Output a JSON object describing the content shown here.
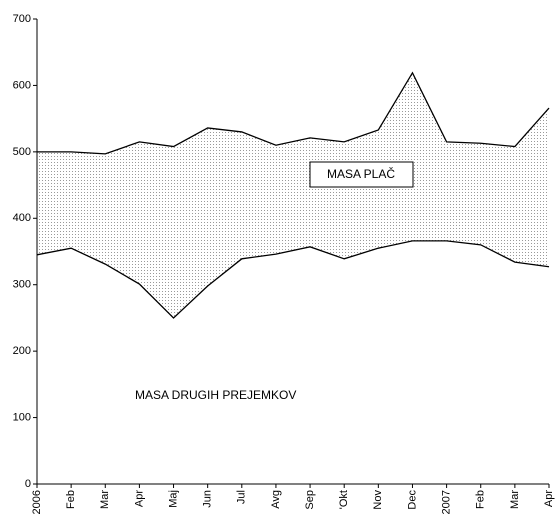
{
  "chart_data": {
    "type": "band",
    "categories": [
      "2006",
      "Feb",
      "Mar",
      "Apr",
      "Maj",
      "Jun",
      "Jul",
      "Avg",
      "Sep",
      "'Okt",
      "Nov",
      "Dec",
      "2007",
      "Feb",
      "Mar",
      "Apr"
    ],
    "series": [
      {
        "name": "MASA PLAČ",
        "color": "#000000",
        "values": [
          500,
          500,
          497,
          515,
          508,
          536,
          530,
          510,
          521,
          515,
          533,
          619,
          515,
          513,
          508,
          566
        ]
      },
      {
        "name": "MASA DRUGIH PREJEMKOV",
        "color": "#000000",
        "values": [
          345,
          355,
          331,
          301,
          250,
          298,
          339,
          346,
          357,
          339,
          355,
          366,
          366,
          360,
          334,
          327
        ]
      }
    ],
    "ylim": [
      0,
      700
    ],
    "yticks": [
      0,
      100,
      200,
      300,
      400,
      500,
      600,
      700
    ],
    "grid": false
  }
}
